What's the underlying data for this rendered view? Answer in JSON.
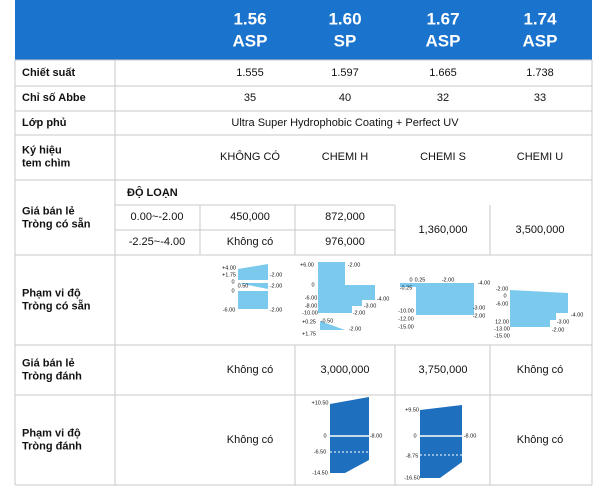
{
  "header": [
    {
      "index": "1.56",
      "code": "ASP"
    },
    {
      "index": "1.60",
      "code": "SP"
    },
    {
      "index": "1.67",
      "code": "ASP"
    },
    {
      "index": "1.74",
      "code": "ASP"
    }
  ],
  "rows": {
    "refractive_index": {
      "label": [
        "Chiết suất"
      ],
      "values": [
        "1.555",
        "1.597",
        "1.665",
        "1.738"
      ]
    },
    "abbe": {
      "label": [
        "Chỉ số Abbe"
      ],
      "values": [
        "35",
        "40",
        "32",
        "33"
      ]
    },
    "coating": {
      "label": [
        "Lớp phủ"
      ],
      "value": "Ultra Super Hydrophobic Coating + Perfect UV"
    },
    "mark": {
      "label": [
        "Ký hiệu",
        "tem chìm"
      ],
      "values": [
        "KHÔNG CÓ",
        "CHEMI H",
        "CHEMI S",
        "CHEMI U"
      ]
    },
    "stock_price": {
      "label": [
        "Giá bán lẻ",
        "Tròng có sẵn"
      ],
      "sub_header": "ĐỘ LOẠN",
      "ranges": [
        "0.00~-2.00",
        "-2.25~-4.00"
      ],
      "rows": [
        [
          "450,000",
          "872,000"
        ],
        [
          "Không có",
          "976,000"
        ]
      ],
      "merged": [
        "1,360,000",
        "3,500,000"
      ]
    },
    "stock_range": {
      "label": [
        "Phạm vi độ",
        "Tròng có sẵn"
      ],
      "diagrams": [
        [
          "+4.00",
          "+1.75",
          "0",
          "0.50",
          "0",
          "-6.00",
          "-2.00",
          "-2.00",
          "-2.00"
        ],
        [
          "+6.00",
          "-2.00",
          "0",
          "-6.00",
          "-8.00",
          "-10.00",
          "-4.00",
          "-3.00",
          "-2.00",
          "+0.25",
          "-0.50",
          "-2.00",
          "+1.75"
        ],
        [
          "0",
          "0.25",
          "-2.00",
          "-4.00",
          "-0.25",
          "-10.00",
          "-12.00",
          "-15.00",
          "-3.00",
          "-2.00"
        ],
        [
          "-2.00",
          "0",
          "-6.00",
          "-4.00",
          "-3.00",
          "-2.00",
          "12.00",
          "-13.00",
          "-15.00"
        ]
      ]
    },
    "rx_price": {
      "label": [
        "Giá bán lẻ",
        "Tròng đánh"
      ],
      "values": [
        "Không có",
        "3,000,000",
        "3,750,000",
        "Không có"
      ]
    },
    "rx_range": {
      "label": [
        "Phạm vi độ",
        "Tròng đánh"
      ],
      "not_available": [
        "Không có",
        "Không có"
      ],
      "diagrams": [
        [
          "+10.50",
          "0",
          "-8.00",
          "-6.50",
          "-14.50"
        ],
        [
          "+9.50",
          "0",
          "-8.00",
          "-8.75",
          "-16.50"
        ]
      ]
    }
  }
}
